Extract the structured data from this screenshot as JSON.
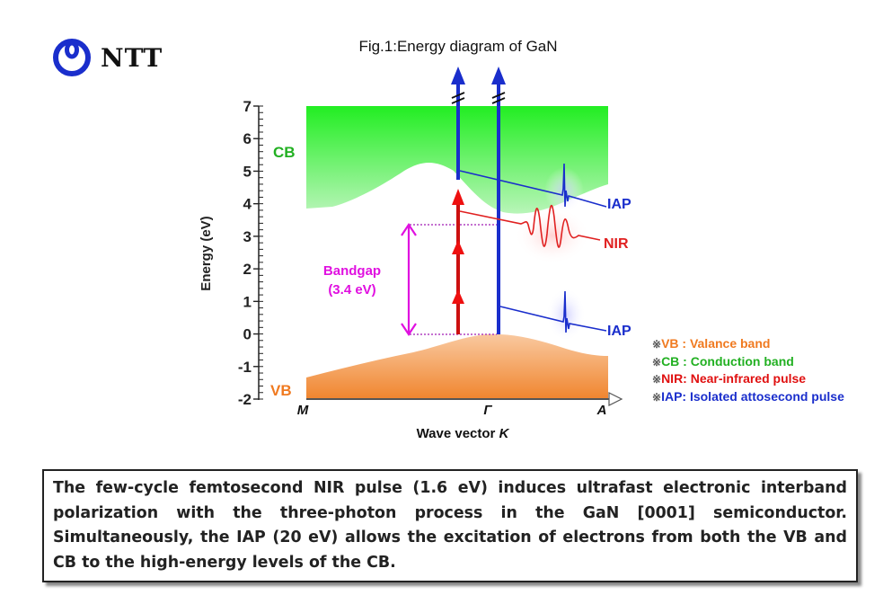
{
  "logo": {
    "icon": "ntt-logo-icon",
    "text": "NTT",
    "color": "#1a2ecc"
  },
  "figure": {
    "title": "Fig.1:Energy diagram of GaN",
    "y_axis": {
      "label": "Energy (eV)",
      "ticks": [
        "7",
        "6",
        "5",
        "4",
        "3",
        "2",
        "1",
        "0",
        "-1",
        "-2"
      ],
      "range": [
        -2,
        7
      ]
    },
    "x_axis": {
      "label_prefix": "Wave vector ",
      "label_var": "K",
      "ticks": [
        "M",
        "Γ",
        "A"
      ]
    },
    "bands": {
      "cb_label": "CB",
      "vb_label": "VB",
      "cb_color": "#2ee82e",
      "vb_color": "#f08a3c"
    },
    "bandgap": {
      "label": "Bandgap",
      "value": "(3.4 eV)",
      "energy_eV": 3.4,
      "color": "#e010e0"
    },
    "pulses": {
      "iap_label": "IAP",
      "nir_label": "NIR",
      "iap_color": "#1a2ecc",
      "nir_color": "#e02020",
      "nir_photons": 3
    },
    "legend": [
      {
        "mark": "※",
        "text": "VB : Valance band",
        "color": "#f07a20"
      },
      {
        "mark": "※",
        "text": "CB : Conduction band",
        "color": "#22b022"
      },
      {
        "mark": "※",
        "text": "NIR: Near-infrared pulse",
        "color": "#e01010"
      },
      {
        "mark": "※",
        "text": "IAP: Isolated attosecond pulse",
        "color": "#1a2ecc"
      }
    ]
  },
  "caption": {
    "text": "The few-cycle femtosecond NIR pulse (1.6 eV) induces ultrafast electronic interband polarization with the three-photon process in the GaN [0001] semiconductor. Simultaneously, the IAP (20 eV) allows the excitation of electrons from both the VB and CB to the high-energy levels of the CB."
  }
}
